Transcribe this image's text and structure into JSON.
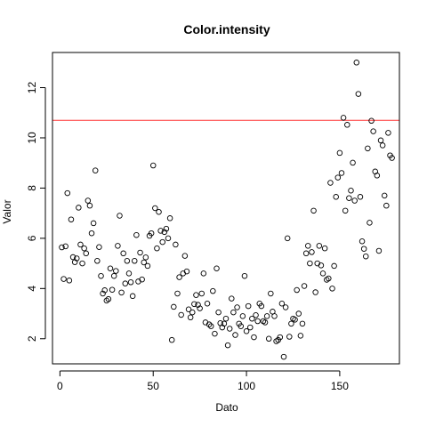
{
  "chart_data": {
    "type": "scatter",
    "title": "Color.intensity",
    "xlabel": "Dato",
    "ylabel": "Valor",
    "xlim": [
      -4,
      182
    ],
    "ylim": [
      1.0,
      13.4
    ],
    "xticks": [
      0,
      50,
      100,
      150
    ],
    "yticks": [
      2,
      4,
      6,
      8,
      10,
      12
    ],
    "point_color": "#000000",
    "hline": {
      "y": 10.7,
      "color": "#ff3030"
    },
    "series": [
      {
        "x": [
          1,
          2,
          3,
          4,
          5,
          6,
          7,
          8,
          9,
          10,
          11,
          12,
          13,
          14,
          15,
          16,
          17,
          18,
          19,
          20,
          21,
          22,
          23,
          24,
          25,
          26,
          27,
          28,
          29,
          30,
          31,
          32,
          33,
          34,
          35,
          36,
          37,
          38,
          39,
          40,
          41,
          42,
          43,
          44,
          45,
          46,
          47,
          48,
          49,
          50,
          51,
          52,
          53,
          54,
          55,
          56,
          57,
          58,
          59,
          60,
          61,
          62,
          63,
          64,
          65,
          66,
          67,
          68,
          69,
          70,
          71,
          72,
          73,
          74,
          75,
          76,
          77,
          78,
          79,
          80,
          81,
          82,
          83,
          84,
          85,
          86,
          87,
          88,
          89,
          90,
          91,
          92,
          93,
          94,
          95,
          96,
          97,
          98,
          99,
          100,
          101,
          102,
          103,
          104,
          105,
          106,
          107,
          108,
          109,
          110,
          111,
          112,
          113,
          114,
          115,
          116,
          117,
          118,
          119,
          120,
          121,
          122,
          123,
          124,
          125,
          126,
          127,
          128,
          129,
          130,
          131,
          132,
          133,
          134,
          135,
          136,
          137,
          138,
          139,
          140,
          141,
          142,
          143,
          144,
          145,
          146,
          147,
          148,
          149,
          150,
          151,
          152,
          153,
          154,
          155,
          156,
          157,
          158,
          159,
          160,
          161,
          162,
          163,
          164,
          165,
          166,
          167,
          168,
          169,
          170,
          171,
          172,
          173,
          174,
          175,
          176,
          177,
          178
        ],
        "y": [
          5.64,
          4.38,
          5.68,
          7.8,
          4.32,
          6.75,
          5.25,
          5.05,
          5.2,
          7.22,
          5.75,
          5.0,
          5.6,
          5.4,
          7.5,
          7.3,
          6.2,
          6.6,
          8.7,
          5.1,
          5.65,
          4.5,
          3.8,
          3.93,
          3.52,
          3.58,
          4.8,
          3.95,
          4.5,
          4.7,
          5.7,
          6.9,
          3.84,
          5.4,
          4.2,
          5.1,
          4.6,
          4.25,
          3.7,
          5.1,
          6.13,
          4.28,
          5.43,
          4.36,
          5.04,
          5.24,
          4.9,
          6.1,
          6.2,
          8.9,
          7.2,
          5.6,
          7.05,
          6.3,
          5.85,
          6.25,
          6.38,
          6.0,
          6.8,
          1.95,
          3.27,
          5.75,
          3.8,
          4.45,
          2.95,
          4.6,
          5.3,
          4.68,
          3.17,
          2.85,
          3.05,
          3.38,
          3.74,
          3.35,
          3.21,
          3.8,
          4.6,
          2.65,
          3.4,
          2.57,
          2.5,
          3.9,
          2.2,
          4.8,
          3.05,
          2.62,
          2.45,
          2.6,
          2.8,
          1.74,
          2.4,
          3.6,
          3.05,
          2.15,
          3.25,
          2.6,
          2.5,
          2.9,
          4.5,
          2.3,
          3.3,
          2.45,
          2.8,
          2.06,
          2.94,
          2.7,
          3.4,
          3.3,
          2.7,
          2.65,
          2.9,
          2.0,
          3.8,
          3.08,
          2.9,
          1.9,
          1.95,
          2.06,
          3.4,
          1.28,
          3.25,
          6.0,
          2.08,
          2.6,
          2.8,
          2.76,
          3.94,
          3.0,
          2.12,
          2.6,
          4.1,
          5.4,
          5.7,
          5.0,
          5.45,
          7.1,
          3.85,
          5.0,
          5.7,
          4.92,
          4.6,
          5.6,
          4.35,
          4.4,
          8.21,
          4.0,
          4.9,
          7.65,
          8.42,
          9.4,
          8.6,
          10.8,
          7.1,
          10.52,
          7.6,
          7.9,
          9.01,
          7.5,
          13.0,
          11.75,
          7.65,
          5.88,
          5.58,
          5.28,
          9.58,
          6.62,
          10.68,
          10.26,
          8.66,
          8.5,
          5.5,
          9.899999,
          9.7,
          7.7,
          7.3,
          10.2,
          9.3,
          9.2
        ]
      }
    ]
  }
}
